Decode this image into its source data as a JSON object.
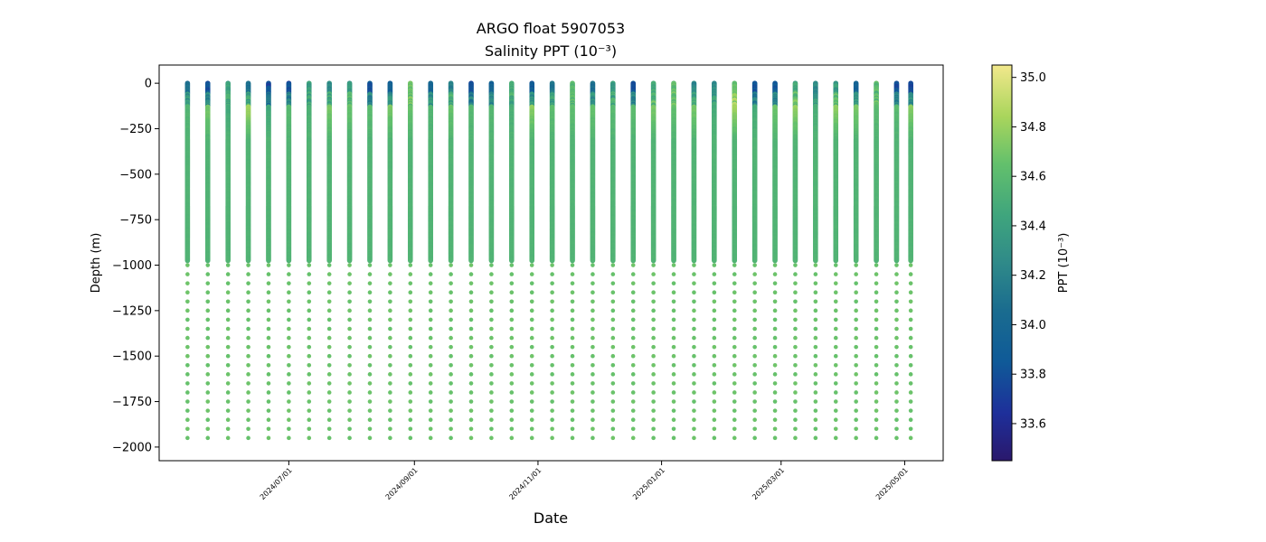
{
  "chart_data": {
    "type": "scatter",
    "title": "ARGO float 5907053",
    "subtitle": "Salinity PPT (10⁻³)",
    "xlabel": "Date",
    "ylabel": "Depth (m)",
    "colorbar_label": "PPT (10⁻³)",
    "colormap": "haline",
    "clim": [
      33.45,
      35.05
    ],
    "colorbar_ticks": [
      33.6,
      33.8,
      34.0,
      34.2,
      34.4,
      34.6,
      34.8,
      35.0
    ],
    "colorbar_tick_labels": [
      "33.6",
      "33.8",
      "34.0",
      "34.2",
      "34.4",
      "34.6",
      "34.8",
      "35.0"
    ],
    "xlim": [
      "2024-04-28",
      "2025-05-20"
    ],
    "ylim": [
      -2075,
      100
    ],
    "x_ticks": [
      "2024-07-01",
      "2024-09-01",
      "2024-11-01",
      "2025-01-01",
      "2025-03-01",
      "2025-05-01"
    ],
    "x_tick_labels": [
      "2024/07/01",
      "2024/09/01",
      "2024/11/01",
      "2025/01/01",
      "2025/03/01",
      "2025/05/01"
    ],
    "y_ticks": [
      0,
      -250,
      -500,
      -750,
      -1000,
      -1250,
      -1500,
      -1750,
      -2000
    ],
    "y_tick_labels": [
      "0",
      "−250",
      "−500",
      "−750",
      "−1000",
      "−1250",
      "−1500",
      "−1750",
      "−2000"
    ],
    "grid": false,
    "colors": {
      "deep_salinity_marker": "#63c06c",
      "axis": "#000000"
    },
    "profile_dates": [
      "2024-05-12",
      "2024-05-22",
      "2024-06-01",
      "2024-06-11",
      "2024-06-21",
      "2024-07-01",
      "2024-07-11",
      "2024-07-21",
      "2024-07-31",
      "2024-08-10",
      "2024-08-20",
      "2024-08-30",
      "2024-09-09",
      "2024-09-19",
      "2024-09-29",
      "2024-10-09",
      "2024-10-19",
      "2024-10-29",
      "2024-11-08",
      "2024-11-18",
      "2024-11-28",
      "2024-12-08",
      "2024-12-18",
      "2024-12-28",
      "2025-01-07",
      "2025-01-17",
      "2025-01-27",
      "2025-02-06",
      "2025-02-16",
      "2025-02-26",
      "2025-03-08",
      "2025-03-18",
      "2025-03-28",
      "2025-04-07",
      "2025-04-17",
      "2025-04-27",
      "2025-05-04"
    ],
    "profile_depth_max": -975,
    "profile_depth_bottom": -1975,
    "salinity_profile": {
      "depth": [
        0,
        -50,
        -100,
        -150,
        -200,
        -300,
        -500,
        -1000,
        -2000
      ],
      "salinity_range": [
        33.7,
        34.85
      ],
      "deep_salinity": 34.55
    }
  }
}
